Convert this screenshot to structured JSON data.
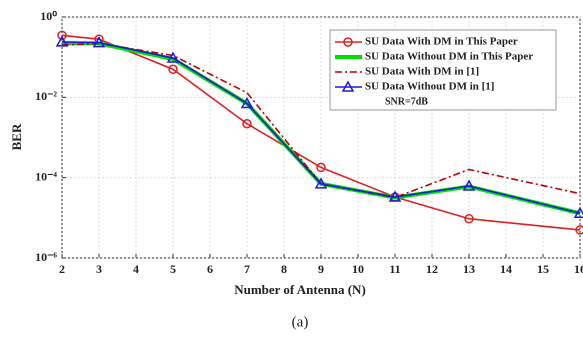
{
  "chart_data": {
    "type": "line",
    "x_label": "Number of Antenna (N)",
    "y_label": "BER",
    "caption": "(a)",
    "annotation": "SNR=7dB",
    "x": [
      2,
      3,
      5,
      7,
      9,
      11,
      13,
      16
    ],
    "series": [
      {
        "name": "SU Data With DM in This Paper",
        "color": "#e02020",
        "dash": "solid",
        "marker": "circle",
        "values": [
          0.35,
          0.28,
          0.05,
          0.0022,
          0.00018,
          3.3e-05,
          9.5e-06,
          5e-06
        ]
      },
      {
        "name": "SU Data Without DM in This Paper",
        "color": "#00e000",
        "dash": "solid",
        "marker": "none",
        "values": [
          0.22,
          0.22,
          0.09,
          0.007,
          7e-05,
          3.2e-05,
          6e-05,
          1.3e-05
        ]
      },
      {
        "name": "SU Data With DM in [1]",
        "color": "#c00000",
        "dash": "dashdot",
        "marker": "none",
        "values": [
          0.2,
          0.22,
          0.11,
          0.013,
          7e-05,
          3.2e-05,
          0.00016,
          4e-05
        ]
      },
      {
        "name": "SU Data Without DM in [1]",
        "color": "#1a1adb",
        "dash": "solid",
        "marker": "triangle",
        "values": [
          0.24,
          0.23,
          0.095,
          0.007,
          7e-05,
          3.3e-05,
          6.2e-05,
          1.3e-05
        ]
      }
    ],
    "xlim": [
      2,
      16
    ],
    "xticks": [
      2,
      3,
      4,
      5,
      6,
      7,
      8,
      9,
      10,
      11,
      12,
      13,
      14,
      15,
      16
    ],
    "ylim": [
      1e-06,
      1
    ],
    "log_y": true,
    "yticks": [
      {
        "value": 1,
        "label": "10⁰"
      },
      {
        "value": 0.01,
        "label": "10⁻²"
      },
      {
        "value": 0.0001,
        "label": "10⁻⁴"
      },
      {
        "value": 1e-06,
        "label": "10⁻⁶"
      }
    ],
    "grid": true,
    "legend": "upper right"
  }
}
